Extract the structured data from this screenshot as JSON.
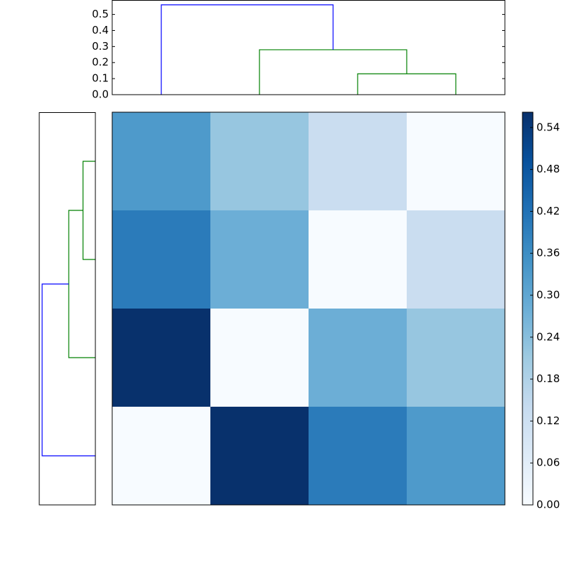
{
  "chart_data": [
    {
      "type": "dendrogram",
      "orientation": "top",
      "icoord": [
        [
          25,
          25,
          35,
          35
        ],
        [
          15,
          15,
          30,
          30
        ],
        [
          5,
          5,
          22.5,
          22.5
        ]
      ],
      "dcoord": [
        [
          0,
          0.13,
          0.13,
          0
        ],
        [
          0,
          0.28,
          0.28,
          0.13
        ],
        [
          0,
          0.56,
          0.56,
          0.28
        ]
      ],
      "colors": [
        "#008000",
        "#008000",
        "#0000ff"
      ],
      "xlim": [
        0,
        40
      ],
      "ylim": [
        0,
        0.59
      ],
      "yticks": [
        {
          "value": 0.0,
          "label": "0.0"
        },
        0.1,
        0.2,
        0.3,
        0.4,
        0.5
      ]
    },
    {
      "type": "dendrogram",
      "orientation": "left",
      "icoord": [
        [
          25,
          25,
          35,
          35
        ],
        [
          15,
          15,
          30,
          30
        ],
        [
          5,
          5,
          22.5,
          22.5
        ]
      ],
      "dcoord": [
        [
          0,
          0.13,
          0.13,
          0
        ],
        [
          0,
          0.28,
          0.28,
          0.13
        ],
        [
          0,
          0.56,
          0.56,
          0.28
        ]
      ],
      "colors": [
        "#008000",
        "#008000",
        "#0000ff"
      ],
      "xlim": [
        0,
        40
      ],
      "ylim": [
        0,
        0.59
      ]
    },
    {
      "type": "heatmap",
      "z": [
        [
          0.33,
          0.22,
          0.13,
          0.0
        ],
        [
          0.4,
          0.28,
          0.0,
          0.13
        ],
        [
          0.56,
          0.0,
          0.28,
          0.22
        ],
        [
          0.0,
          0.56,
          0.4,
          0.33
        ]
      ],
      "colormap": [
        "#f7fbff",
        "#deebf7",
        "#c6dbef",
        "#9ecae1",
        "#6baed6",
        "#4292c6",
        "#2171b5",
        "#08519c",
        "#08306b"
      ],
      "clim": [
        0,
        0.5619
      ],
      "cticks": [
        {
          "value": 0.0,
          "label": "0.00"
        },
        {
          "value": 0.06,
          "label": "0.06"
        },
        {
          "value": 0.12,
          "label": "0.12"
        },
        {
          "value": 0.18,
          "label": "0.18"
        },
        {
          "value": 0.24,
          "label": "0.24"
        },
        {
          "value": 0.3,
          "label": "0.30"
        },
        {
          "value": 0.36,
          "label": "0.36"
        },
        {
          "value": 0.42,
          "label": "0.42"
        },
        {
          "value": 0.48,
          "label": "0.48"
        },
        {
          "value": 0.54,
          "label": "0.54"
        }
      ]
    }
  ]
}
